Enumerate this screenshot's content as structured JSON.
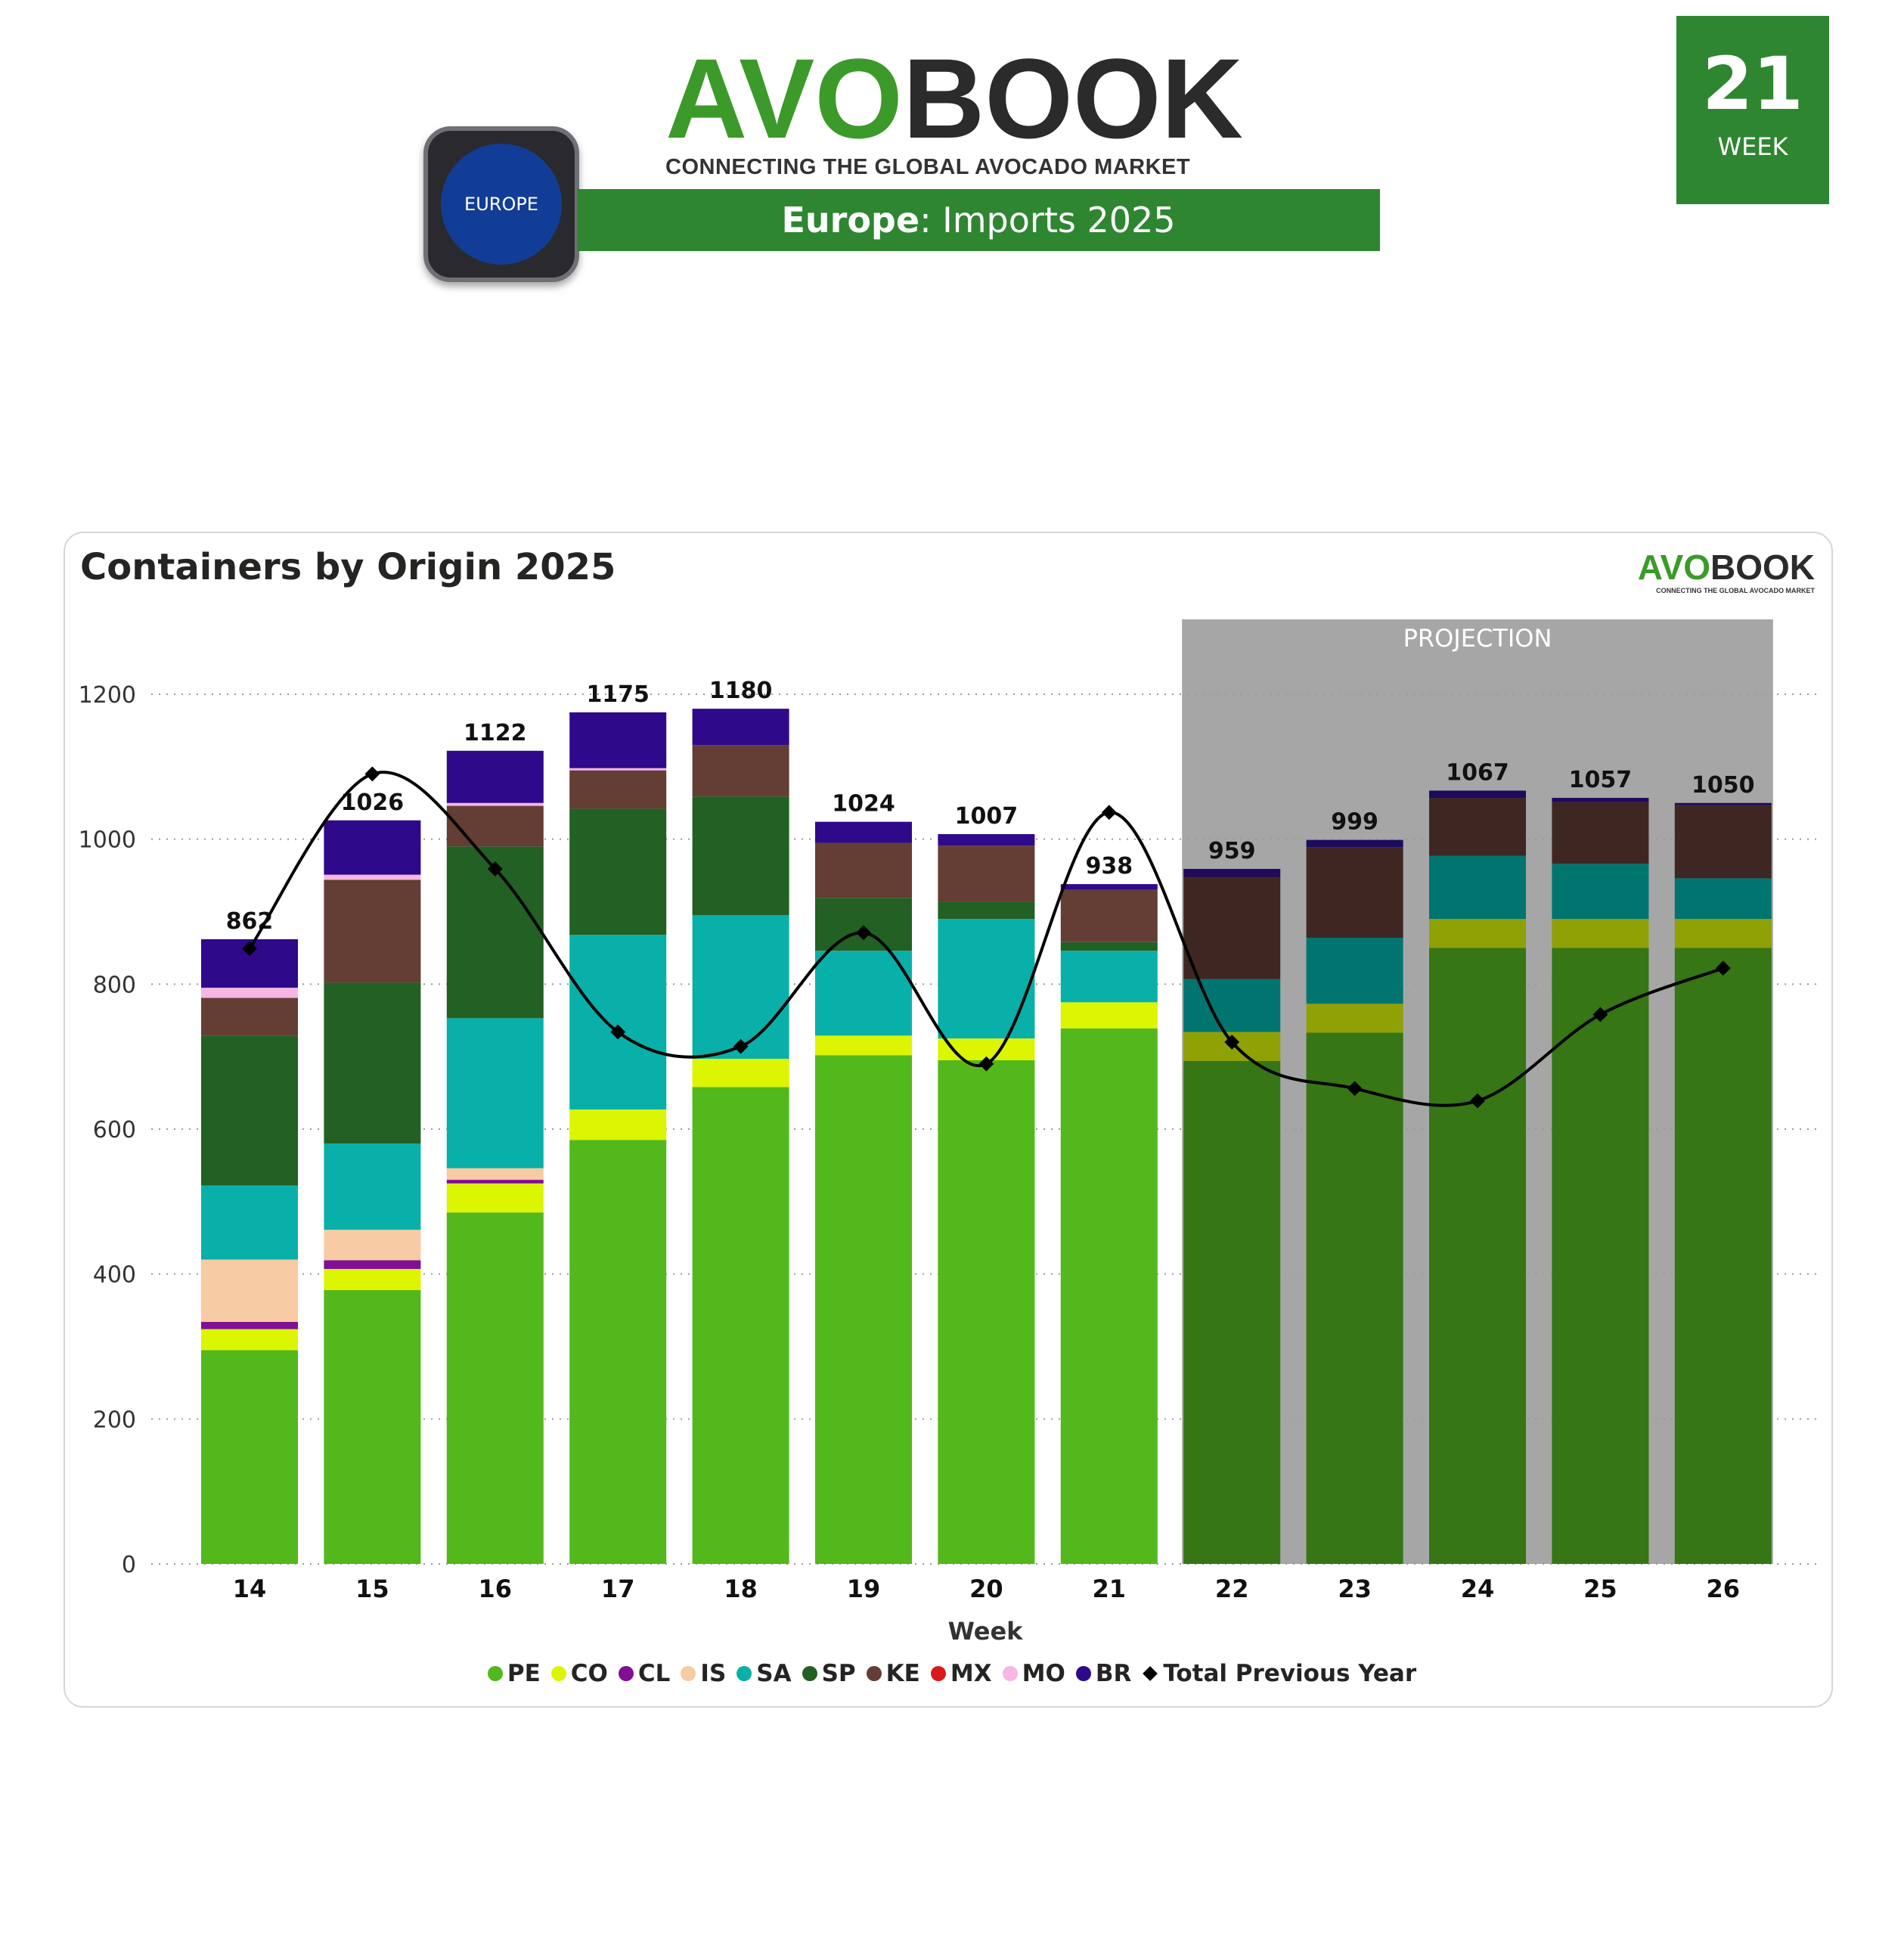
{
  "header": {
    "logo_text": "AVOBOOK",
    "logo_tagline": "CONNECTING THE GLOBAL AVOCADO MARKET",
    "title_region": "Europe",
    "title_rest": ": Imports 2025",
    "badge_label": "EUROPE",
    "week_number": "21",
    "week_label": "WEEK"
  },
  "colors": {
    "brand_green": "#2e8631",
    "projection_bg": "#a6a6a6"
  },
  "chart_data": {
    "type": "bar",
    "stacked": true,
    "title": "Containers by Origin 2025",
    "xlabel": "Week",
    "ylabel": "",
    "ylim": [
      0,
      1300
    ],
    "yticks": [
      0,
      200,
      400,
      600,
      800,
      1000,
      1200
    ],
    "grid": "horizontal dotted",
    "legend_position": "bottom",
    "projection_label": "PROJECTION",
    "projection_categories": [
      "22",
      "23",
      "24",
      "25",
      "26"
    ],
    "categories": [
      "14",
      "15",
      "16",
      "17",
      "18",
      "19",
      "20",
      "21",
      "22",
      "23",
      "24",
      "25",
      "26"
    ],
    "totals": [
      862,
      1026,
      1122,
      1175,
      1180,
      1024,
      1007,
      938,
      959,
      999,
      1067,
      1057,
      1050
    ],
    "series": [
      {
        "name": "PE",
        "color": "#52b81c",
        "projection_color": "#367614",
        "values": [
          295,
          378,
          485,
          585,
          658,
          702,
          695,
          739,
          694,
          733,
          850,
          850,
          850
        ]
      },
      {
        "name": "CO",
        "color": "#dcf500",
        "projection_color": "#8fa105",
        "values": [
          29,
          29,
          40,
          42,
          39,
          27,
          30,
          36,
          40,
          40,
          40,
          40,
          40
        ]
      },
      {
        "name": "CL",
        "color": "#800f96",
        "projection_color": "#4a0857",
        "values": [
          10,
          12,
          5,
          0,
          0,
          0,
          0,
          0,
          0,
          0,
          0,
          0,
          0
        ]
      },
      {
        "name": "IS",
        "color": "#f7cba3",
        "projection_color": "#9c7f66",
        "values": [
          86,
          42,
          16,
          0,
          0,
          0,
          0,
          0,
          0,
          0,
          0,
          0,
          0
        ]
      },
      {
        "name": "SA",
        "color": "#09b0aa",
        "projection_color": "#007570",
        "values": [
          102,
          119,
          207,
          241,
          198,
          117,
          165,
          71,
          73,
          91,
          87,
          76,
          56
        ]
      },
      {
        "name": "SP",
        "color": "#226023",
        "projection_color": "#163d16",
        "values": [
          207,
          222,
          237,
          174,
          164,
          73,
          24,
          12,
          0,
          0,
          0,
          0,
          0
        ]
      },
      {
        "name": "KE",
        "color": "#643d35",
        "projection_color": "#3e2723",
        "values": [
          52,
          142,
          56,
          53,
          71,
          76,
          77,
          72,
          141,
          125,
          80,
          85,
          101
        ]
      },
      {
        "name": "MX",
        "color": "#d81a1a",
        "projection_color": "#8a1010",
        "values": [
          0,
          0,
          0,
          0,
          0,
          0,
          0,
          0,
          0,
          0,
          0,
          0,
          0
        ]
      },
      {
        "name": "MO",
        "color": "#f7b6e3",
        "projection_color": "#9c7390",
        "values": [
          14,
          7,
          4,
          3,
          0,
          0,
          0,
          0,
          0,
          0,
          0,
          0,
          0
        ]
      },
      {
        "name": "BR",
        "color": "#2e0a8a",
        "projection_color": "#1f0a5e",
        "values": [
          67,
          75,
          72,
          77,
          50,
          29,
          16,
          8,
          11,
          10,
          10,
          6,
          3
        ]
      }
    ],
    "line": {
      "name": "Total Previous Year",
      "color": "#000000",
      "values": [
        849,
        1090,
        959,
        734,
        714,
        871,
        690,
        1037,
        720,
        656,
        639,
        758,
        822
      ]
    }
  }
}
